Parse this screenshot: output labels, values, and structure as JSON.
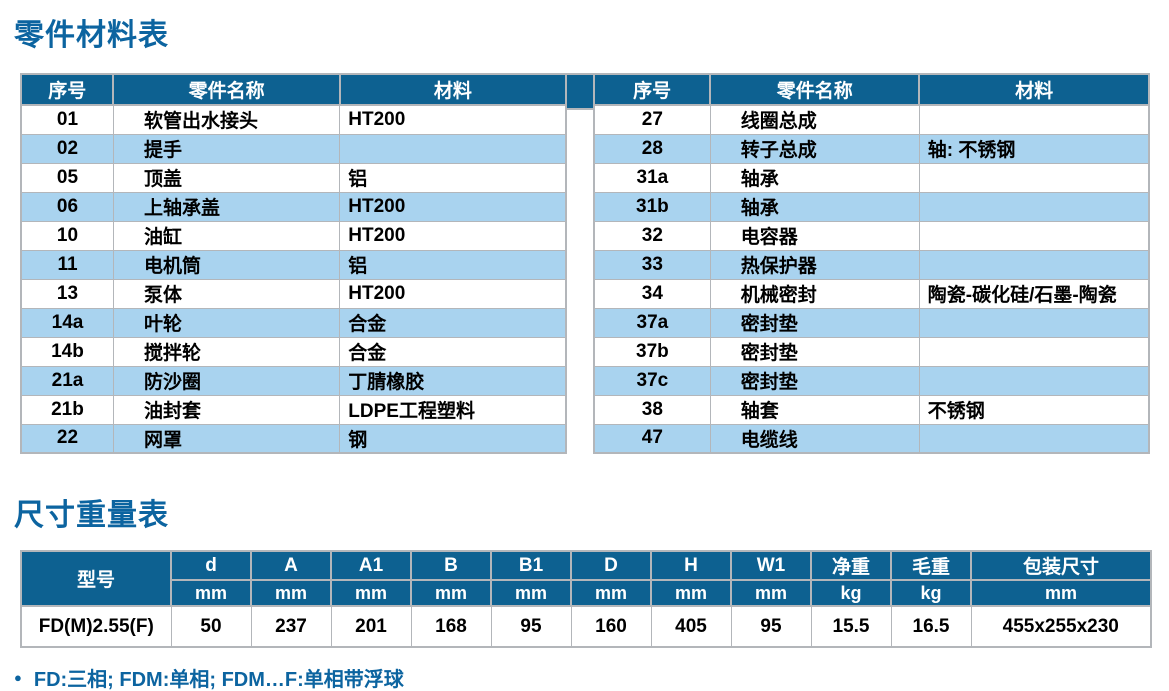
{
  "page": {
    "parts_title": "零件材料表",
    "dimensions_title": "尺寸重量表",
    "bullet": "●",
    "footnote": "FD:三相; FDM:单相; FDM…F:单相带浮球"
  },
  "colors": {
    "header_blue": "#0d6191",
    "row_light_blue": "#a9d3ef",
    "title_blue": "#0c64a0",
    "grid_gray": "#b3b6ba"
  },
  "parts_table": {
    "headers": [
      "序号",
      "零件名称",
      "材料"
    ],
    "left_rows": [
      {
        "no": "01",
        "name": "软管出水接头",
        "material": "HT200"
      },
      {
        "no": "02",
        "name": "提手",
        "material": ""
      },
      {
        "no": "05",
        "name": "顶盖",
        "material": "铝"
      },
      {
        "no": "06",
        "name": "上轴承盖",
        "material": "HT200"
      },
      {
        "no": "10",
        "name": "油缸",
        "material": "HT200"
      },
      {
        "no": "11",
        "name": "电机筒",
        "material": "铝"
      },
      {
        "no": "13",
        "name": "泵体",
        "material": "HT200"
      },
      {
        "no": "14a",
        "name": "叶轮",
        "material": "合金"
      },
      {
        "no": "14b",
        "name": "搅拌轮",
        "material": "合金"
      },
      {
        "no": "21a",
        "name": "防沙圈",
        "material": "丁腈橡胶"
      },
      {
        "no": "21b",
        "name": "油封套",
        "material": "LDPE工程塑料"
      },
      {
        "no": "22",
        "name": "网罩",
        "material": "钢"
      }
    ],
    "right_rows": [
      {
        "no": "27",
        "name": "线圈总成",
        "material": ""
      },
      {
        "no": "28",
        "name": "转子总成",
        "material": "轴: 不锈钢"
      },
      {
        "no": "31a",
        "name": "轴承",
        "material": ""
      },
      {
        "no": "31b",
        "name": "轴承",
        "material": ""
      },
      {
        "no": "32",
        "name": "电容器",
        "material": ""
      },
      {
        "no": "33",
        "name": "热保护器",
        "material": ""
      },
      {
        "no": "34",
        "name": "机械密封",
        "material": "陶瓷-碳化硅/石墨-陶瓷"
      },
      {
        "no": "37a",
        "name": "密封垫",
        "material": ""
      },
      {
        "no": "37b",
        "name": "密封垫",
        "material": ""
      },
      {
        "no": "37c",
        "name": "密封垫",
        "material": ""
      },
      {
        "no": "38",
        "name": "轴套",
        "material": "不锈钢"
      },
      {
        "no": "47",
        "name": "电缆线",
        "material": ""
      }
    ]
  },
  "dimensions_table": {
    "model_header": "型号",
    "columns": [
      {
        "label": "d",
        "unit": "mm"
      },
      {
        "label": "A",
        "unit": "mm"
      },
      {
        "label": "A1",
        "unit": "mm"
      },
      {
        "label": "B",
        "unit": "mm"
      },
      {
        "label": "B1",
        "unit": "mm"
      },
      {
        "label": "D",
        "unit": "mm"
      },
      {
        "label": "H",
        "unit": "mm"
      },
      {
        "label": "W1",
        "unit": "mm"
      },
      {
        "label": "净重",
        "unit": "kg"
      },
      {
        "label": "毛重",
        "unit": "kg"
      },
      {
        "label": "包装尺寸",
        "unit": "mm"
      }
    ],
    "rows": [
      {
        "model": "FD(M)2.55(F)",
        "values": [
          "50",
          "237",
          "201",
          "168",
          "95",
          "160",
          "405",
          "95",
          "15.5",
          "16.5",
          "455x255x230"
        ]
      }
    ]
  }
}
